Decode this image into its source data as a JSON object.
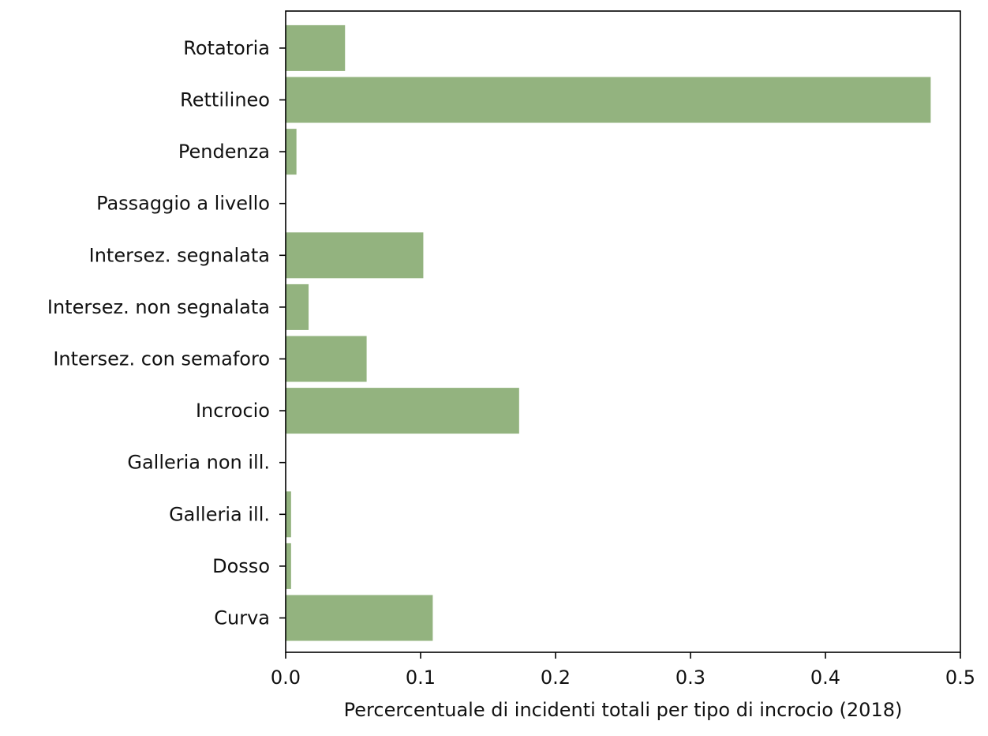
{
  "chart_data": {
    "type": "bar",
    "orientation": "horizontal",
    "title": "",
    "xlabel": "Percercentuale di incidenti totali per tipo di incrocio (2018)",
    "ylabel": "",
    "categories": [
      "Curva",
      "Dosso",
      "Galleria ill.",
      "Galleria non ill.",
      "Incrocio",
      "Intersez. con semaforo",
      "Intersez. non segnalata",
      "Intersez. segnalata",
      "Passaggio a livello",
      "Pendenza",
      "Rettilineo",
      "Rotatoria"
    ],
    "values": [
      0.109,
      0.004,
      0.004,
      0.0,
      0.173,
      0.06,
      0.017,
      0.102,
      0.0,
      0.008,
      0.478,
      0.044
    ],
    "xlim": [
      0.0,
      0.5
    ],
    "xticks": [
      0.0,
      0.1,
      0.2,
      0.3,
      0.4,
      0.5
    ],
    "xtick_labels": [
      "0.0",
      "0.1",
      "0.2",
      "0.3",
      "0.4",
      "0.5"
    ],
    "bar_color": "#93b37f",
    "grid": false,
    "legend": "none"
  }
}
